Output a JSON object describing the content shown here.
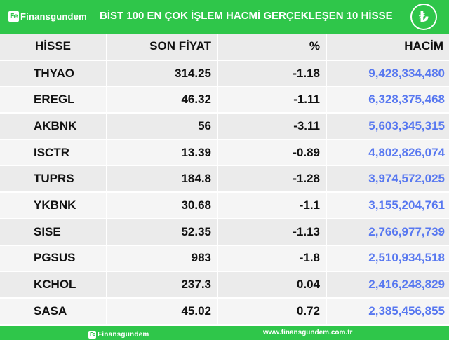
{
  "header": {
    "logo_mark": "Fe",
    "logo_text": "Finansgundem",
    "title": "BİST 100 EN ÇOK İŞLEM HACMİ GERÇEKLEŞEN 10 HİSSE",
    "currency_symbol": "₺"
  },
  "table": {
    "columns": [
      "HİSSE",
      "SON FİYAT",
      "%",
      "HACİM"
    ],
    "rows": [
      {
        "stock": "THYAO",
        "price": "314.25",
        "change": "-1.18",
        "volume": "9,428,334,480"
      },
      {
        "stock": "EREGL",
        "price": "46.32",
        "change": "-1.11",
        "volume": "6,328,375,468"
      },
      {
        "stock": "AKBNK",
        "price": "56",
        "change": "-3.11",
        "volume": "5,603,345,315"
      },
      {
        "stock": "ISCTR",
        "price": "13.39",
        "change": "-0.89",
        "volume": "4,802,826,074"
      },
      {
        "stock": "TUPRS",
        "price": "184.8",
        "change": "-1.28",
        "volume": "3,974,572,025"
      },
      {
        "stock": "YKBNK",
        "price": "30.68",
        "change": "-1.1",
        "volume": "3,155,204,761"
      },
      {
        "stock": "SISE",
        "price": "52.35",
        "change": "-1.13",
        "volume": "2,766,977,739"
      },
      {
        "stock": "PGSUS",
        "price": "983",
        "change": "-1.8",
        "volume": "2,510,934,518"
      },
      {
        "stock": "KCHOL",
        "price": "237.3",
        "change": "0.04",
        "volume": "2,416,248,829"
      },
      {
        "stock": "SASA",
        "price": "45.02",
        "change": "0.72",
        "volume": "2,385,456,855"
      }
    ]
  },
  "footer": {
    "logo_mark": "Fe",
    "logo_text": "Finansgundem",
    "url": "www.finansgundem.com.tr"
  },
  "colors": {
    "brand_green": "#2fc64a",
    "volume_blue": "#5878f0",
    "row_odd": "#ebebeb",
    "row_even": "#f5f5f5"
  }
}
